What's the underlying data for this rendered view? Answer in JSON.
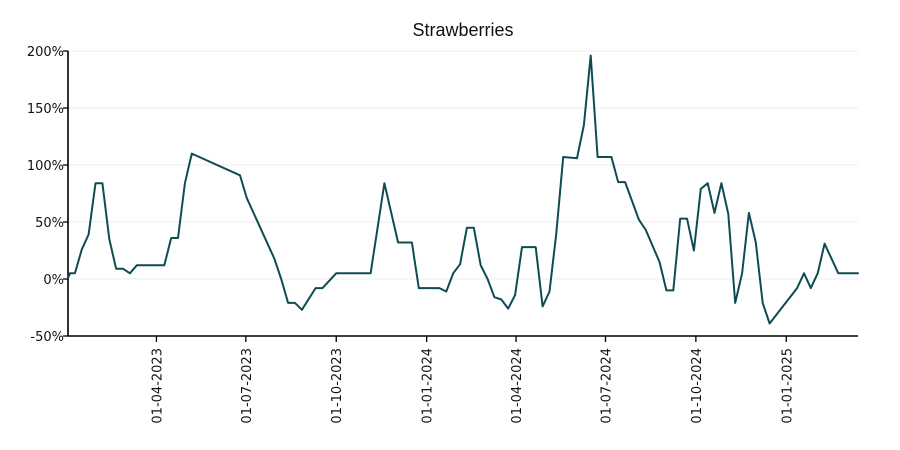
{
  "chart_data": {
    "type": "line",
    "title": "Strawberries",
    "xlabel": "",
    "ylabel": "",
    "x_type": "date",
    "ylim": [
      -50,
      200
    ],
    "xlim": [
      "2023-01-01",
      "2025-03-15"
    ],
    "grid": {
      "horizontal": true,
      "vertical": false
    },
    "legend": "none",
    "colors": {
      "line": "#0e4c52",
      "grid": "#ececec",
      "axis": "#000000"
    },
    "y_ticks": [
      {
        "value": -50,
        "label": "-50%"
      },
      {
        "value": 0,
        "label": "0%"
      },
      {
        "value": 50,
        "label": "50%"
      },
      {
        "value": 100,
        "label": "100%"
      },
      {
        "value": 150,
        "label": "150%"
      },
      {
        "value": 200,
        "label": "200%"
      }
    ],
    "x_ticks": [
      {
        "value": "2023-04-01",
        "label": "01-04-2023"
      },
      {
        "value": "2023-07-01",
        "label": "01-07-2023"
      },
      {
        "value": "2023-10-01",
        "label": "01-10-2023"
      },
      {
        "value": "2024-01-01",
        "label": "01-01-2024"
      },
      {
        "value": "2024-04-01",
        "label": "01-04-2024"
      },
      {
        "value": "2024-07-01",
        "label": "01-07-2024"
      },
      {
        "value": "2024-10-01",
        "label": "01-10-2024"
      },
      {
        "value": "2025-01-01",
        "label": "01-01-2025"
      }
    ],
    "series": [
      {
        "data": [
          [
            "2023-01-01",
            1
          ],
          [
            "2023-01-03",
            5
          ],
          [
            "2023-01-08",
            5
          ],
          [
            "2023-01-15",
            26
          ],
          [
            "2023-01-22",
            39
          ],
          [
            "2023-01-29",
            84
          ],
          [
            "2023-02-05",
            84
          ],
          [
            "2023-02-12",
            35
          ],
          [
            "2023-02-19",
            9
          ],
          [
            "2023-02-26",
            9
          ],
          [
            "2023-03-05",
            5
          ],
          [
            "2023-03-12",
            12
          ],
          [
            "2023-03-19",
            12
          ],
          [
            "2023-04-09",
            12
          ],
          [
            "2023-04-16",
            36
          ],
          [
            "2023-04-23",
            36
          ],
          [
            "2023-04-30",
            84
          ],
          [
            "2023-05-07",
            110
          ],
          [
            "2023-06-25",
            91
          ],
          [
            "2023-07-02",
            71
          ],
          [
            "2023-07-30",
            18
          ],
          [
            "2023-08-06",
            0
          ],
          [
            "2023-08-13",
            -21
          ],
          [
            "2023-08-20",
            -21
          ],
          [
            "2023-08-27",
            -27
          ],
          [
            "2023-09-10",
            -8
          ],
          [
            "2023-09-17",
            -8
          ],
          [
            "2023-10-01",
            5
          ],
          [
            "2023-11-05",
            5
          ],
          [
            "2023-11-19",
            84
          ],
          [
            "2023-12-03",
            32
          ],
          [
            "2023-12-17",
            32
          ],
          [
            "2023-12-24",
            -8
          ],
          [
            "2024-01-14",
            -8
          ],
          [
            "2024-01-21",
            -11
          ],
          [
            "2024-01-28",
            5
          ],
          [
            "2024-02-04",
            13
          ],
          [
            "2024-02-11",
            45
          ],
          [
            "2024-02-18",
            45
          ],
          [
            "2024-02-25",
            12
          ],
          [
            "2024-03-03",
            0
          ],
          [
            "2024-03-10",
            -16
          ],
          [
            "2024-03-17",
            -18
          ],
          [
            "2024-03-24",
            -26
          ],
          [
            "2024-03-31",
            -14
          ],
          [
            "2024-04-07",
            28
          ],
          [
            "2024-04-21",
            28
          ],
          [
            "2024-04-28",
            -24
          ],
          [
            "2024-05-05",
            -11
          ],
          [
            "2024-05-12",
            40
          ],
          [
            "2024-05-19",
            107
          ],
          [
            "2024-06-02",
            106
          ],
          [
            "2024-06-09",
            135
          ],
          [
            "2024-06-16",
            196
          ],
          [
            "2024-06-23",
            107
          ],
          [
            "2024-07-07",
            107
          ],
          [
            "2024-07-14",
            85
          ],
          [
            "2024-07-21",
            85
          ],
          [
            "2024-08-04",
            52
          ],
          [
            "2024-08-11",
            43
          ],
          [
            "2024-08-25",
            15
          ],
          [
            "2024-09-01",
            -10
          ],
          [
            "2024-09-08",
            -10
          ],
          [
            "2024-09-15",
            53
          ],
          [
            "2024-09-22",
            53
          ],
          [
            "2024-09-29",
            25
          ],
          [
            "2024-10-06",
            79
          ],
          [
            "2024-10-13",
            84
          ],
          [
            "2024-10-20",
            58
          ],
          [
            "2024-10-27",
            84
          ],
          [
            "2024-11-03",
            57
          ],
          [
            "2024-11-10",
            -21
          ],
          [
            "2024-11-17",
            5
          ],
          [
            "2024-11-24",
            58
          ],
          [
            "2024-12-01",
            32
          ],
          [
            "2024-12-08",
            -21
          ],
          [
            "2024-12-15",
            -39
          ],
          [
            "2025-01-12",
            -8
          ],
          [
            "2025-01-19",
            5
          ],
          [
            "2025-01-26",
            -8
          ],
          [
            "2025-02-02",
            5
          ],
          [
            "2025-02-09",
            31
          ],
          [
            "2025-02-23",
            5
          ],
          [
            "2025-03-15",
            5
          ]
        ]
      }
    ]
  }
}
